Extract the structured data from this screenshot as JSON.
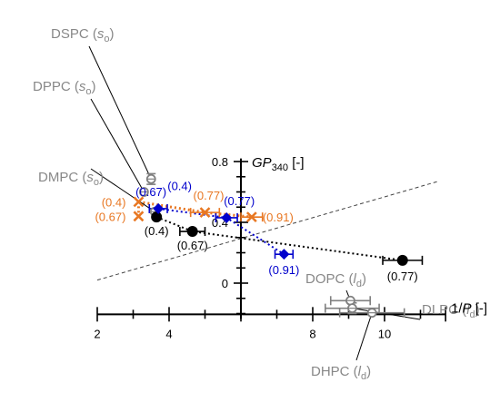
{
  "colors": {
    "axis": "#000000",
    "black_series": "#000000",
    "blue_series": "#0000cc",
    "orange_series": "#e87722",
    "gray_points": "#808080",
    "diagonal": "#444444"
  },
  "chart_data": {
    "type": "scatter",
    "title": "",
    "xlabel_prefix": "1/",
    "xlabel_italic": "P",
    "xlabel_suffix": " [-]",
    "ylabel_italic": "GP",
    "ylabel_sub": "340",
    "ylabel_suffix": " [-]",
    "xlim": [
      1.5,
      12
    ],
    "ylim": [
      -0.23,
      0.83
    ],
    "x_ticks": [
      {
        "value": 2,
        "label": "2"
      },
      {
        "value": 4,
        "label": "4"
      },
      {
        "value": 6,
        "label": ""
      },
      {
        "value": 8,
        "label": "8"
      },
      {
        "value": 10,
        "label": "10"
      }
    ],
    "y_ticks": [
      {
        "value": 0,
        "label": "0"
      },
      {
        "value": 0.4,
        "label": "0.4"
      },
      {
        "value": 0.8,
        "label": "0.8"
      }
    ],
    "y_minor_step": 0.1,
    "grid": false,
    "diagonal_line": {
      "from": [
        2,
        0.02
      ],
      "to": [
        11.5,
        0.67
      ]
    },
    "series": [
      {
        "marker": "circle",
        "color": "#000000",
        "points": [
          {
            "x": 3.65,
            "y": 0.435,
            "xerr": 0.0,
            "label": "(0.4)",
            "label_pos": "below"
          },
          {
            "x": 4.65,
            "y": 0.34,
            "xerr": 0.35,
            "label": "(0.67)",
            "label_pos": "below"
          },
          {
            "x": 10.5,
            "y": 0.15,
            "xerr": 0.55,
            "label": "(0.77)",
            "label_pos": "below"
          }
        ]
      },
      {
        "marker": "diamond",
        "color": "#0000cc",
        "points": [
          {
            "x": 3.7,
            "y": 0.49,
            "xerr": 0.25,
            "label": "(0.67)",
            "label_pos": "above"
          },
          {
            "x": 5.6,
            "y": 0.43,
            "xerr": 0.3,
            "label": "(0.77)",
            "label_pos": "above"
          },
          {
            "x": 7.2,
            "y": 0.19,
            "xerr": 0.25,
            "label": "(0.91)",
            "label_pos": "below"
          }
        ]
      },
      {
        "marker": "cross",
        "color": "#e87722",
        "points": [
          {
            "x": 3.15,
            "y": 0.535,
            "xerr": 0.0,
            "label": "(0.4)",
            "label_pos": "left"
          },
          {
            "x": 3.15,
            "y": 0.44,
            "xerr": 0.0,
            "label": "(0.67)",
            "label_pos": "left"
          },
          {
            "x": 5.0,
            "y": 0.465,
            "xerr": 0.4,
            "label": "(0.77)",
            "label_pos": "above"
          },
          {
            "x": 6.3,
            "y": 0.435,
            "xerr": 0.3,
            "label": "(0.91)",
            "label_pos": "right"
          }
        ]
      },
      {
        "marker": "open-circle",
        "color": "#808080",
        "points": [
          {
            "x": 3.5,
            "y": 0.685,
            "xerr": 0.0,
            "yerr": 0.035
          },
          {
            "x": 3.3,
            "y": 0.6,
            "xerr": 0.0,
            "yerr": 0.0
          },
          {
            "x": 3.6,
            "y": 0.47,
            "xerr": 0.0,
            "yerr": 0.0
          },
          {
            "x": 9.05,
            "y": -0.115,
            "xerr": 0.55,
            "yerr": 0.0
          },
          {
            "x": 9.1,
            "y": -0.165,
            "xerr": 0.75,
            "yerr": 0.035
          },
          {
            "x": 9.65,
            "y": -0.195,
            "xerr": 0.9,
            "yerr": 0.0
          }
        ]
      }
    ],
    "sample_labels": [
      {
        "name": "DSPC",
        "phase": "s",
        "phase_sub": "o",
        "target": [
          3.5,
          0.685
        ]
      },
      {
        "name": "DPPC",
        "phase": "s",
        "phase_sub": "o",
        "target": [
          3.3,
          0.6
        ]
      },
      {
        "name": "DMPC",
        "phase": "s",
        "phase_sub": "o",
        "target": [
          3.6,
          0.47
        ]
      },
      {
        "name": "DOPC",
        "phase": "l",
        "phase_sub": "d",
        "target": [
          9.05,
          -0.115
        ]
      },
      {
        "name": "DLPC",
        "phase": "l",
        "phase_sub": "d",
        "target": [
          9.1,
          -0.165
        ]
      },
      {
        "name": "DHPC",
        "phase": "l",
        "phase_sub": "d",
        "target": [
          9.65,
          -0.195
        ]
      }
    ]
  }
}
